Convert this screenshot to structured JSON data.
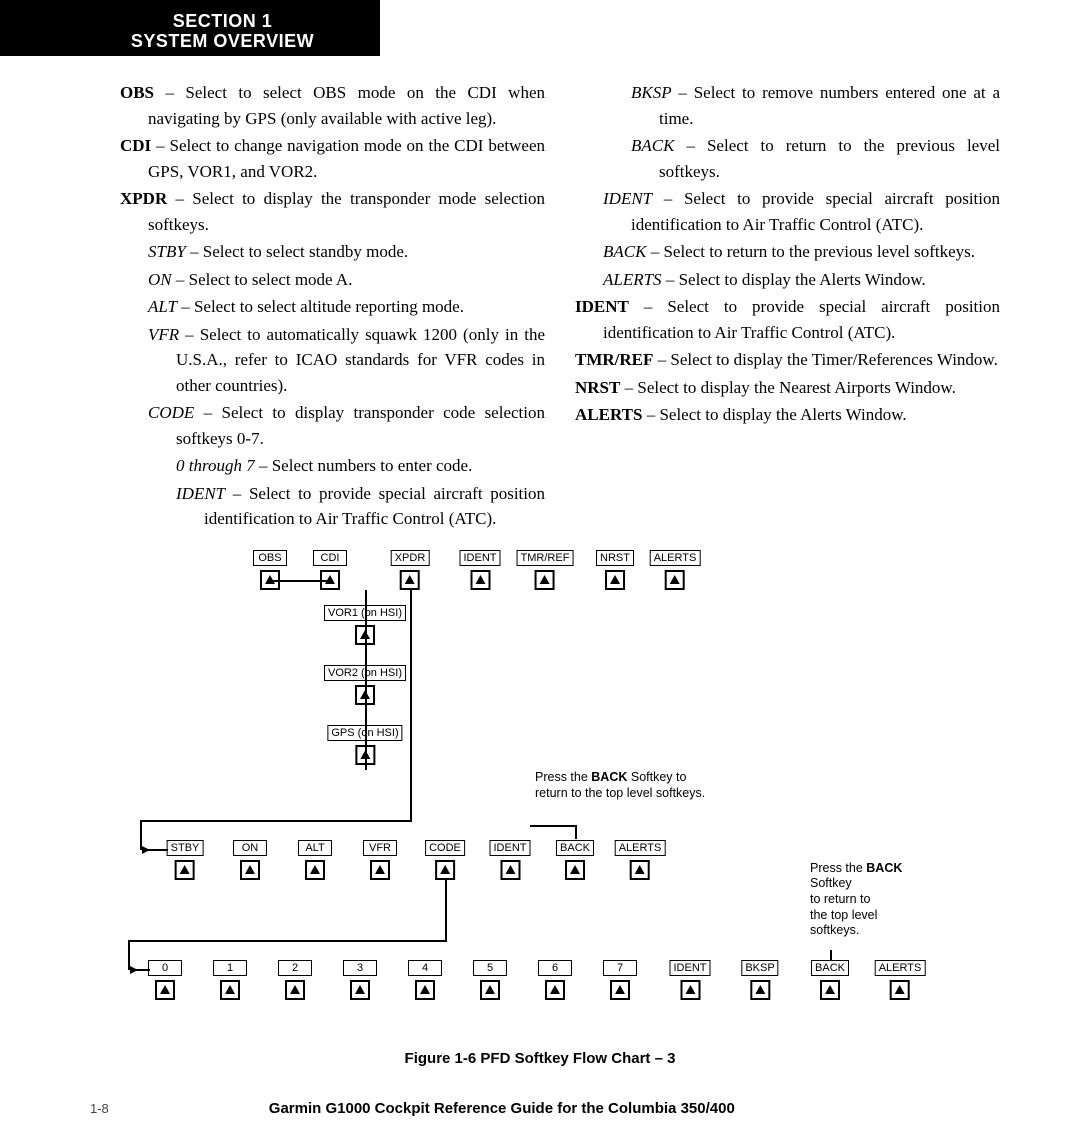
{
  "header": {
    "line1": "SECTION 1",
    "line2": "SYSTEM OVERVIEW"
  },
  "left_col": [
    {
      "lvl": 1,
      "b": "OBS",
      "t": " – Select to select OBS mode on the CDI when navigating by GPS (only available with active leg)."
    },
    {
      "lvl": 1,
      "b": "CDI",
      "t": " – Select to change navigation mode on the CDI between GPS, VOR1, and VOR2."
    },
    {
      "lvl": 1,
      "b": "XPDR",
      "t": " – Select to display the transponder mode selection softkeys."
    },
    {
      "lvl": 2,
      "i": "STBY",
      "t": " – Select to select standby mode."
    },
    {
      "lvl": 2,
      "i": "ON",
      "t": " – Select to select mode A."
    },
    {
      "lvl": 2,
      "i": "ALT",
      "t": " – Select to select altitude reporting mode."
    },
    {
      "lvl": 2,
      "i": "VFR",
      "t": " – Select to automatically squawk 1200 (only in the U.S.A., refer to ICAO standards for VFR codes in other countries)."
    },
    {
      "lvl": 2,
      "i": "CODE",
      "t": " – Select to display transponder code selection softkeys 0-7."
    },
    {
      "lvl": 3,
      "i": "0 through 7",
      "t": " – Select numbers to enter code."
    },
    {
      "lvl": 3,
      "i": "IDENT",
      "t": " – Select to provide special aircraft position identification to Air Traffic Control (ATC)."
    }
  ],
  "right_col": [
    {
      "lvl": 3,
      "i": "BKSP",
      "t": " – Select to remove numbers entered one at a time."
    },
    {
      "lvl": 3,
      "i": "BACK",
      "t": " – Select to return to the previous level softkeys."
    },
    {
      "lvl": 2,
      "i": "IDENT",
      "t": " – Select to provide special aircraft position identification to Air Traffic Control (ATC)."
    },
    {
      "lvl": 2,
      "i": "BACK",
      "t": " – Select to return to the previous level softkeys."
    },
    {
      "lvl": 2,
      "i": "ALERTS",
      "t": " – Select to display the Alerts Window."
    },
    {
      "lvl": 1,
      "b": "IDENT",
      "t": " – Select to provide special aircraft position identification to Air Traffic Control (ATC)."
    },
    {
      "lvl": 1,
      "b": "TMR/REF",
      "t": " – Select to display the Timer/References Window."
    },
    {
      "lvl": 1,
      "b": "NRST",
      "t": " – Select to display the Nearest Airports Window."
    },
    {
      "lvl": 1,
      "b": "ALERTS",
      "t": " – Select to display the Alerts Window."
    }
  ],
  "diagram": {
    "row1": [
      "OBS",
      "CDI",
      "XPDR",
      "IDENT",
      "TMR/REF",
      "NRST",
      "ALERTS"
    ],
    "row1_x": [
      150,
      210,
      290,
      360,
      425,
      495,
      555
    ],
    "cdi_sub": [
      "VOR1 (on HSI)",
      "VOR2 (on HSI)",
      "GPS (on HSI)"
    ],
    "cdi_sub_y": [
      55,
      115,
      175
    ],
    "row2": [
      "STBY",
      "ON",
      "ALT",
      "VFR",
      "CODE",
      "IDENT",
      "BACK",
      "ALERTS"
    ],
    "row2_x": [
      65,
      130,
      195,
      260,
      325,
      390,
      455,
      520
    ],
    "row3": [
      "0",
      "1",
      "2",
      "3",
      "4",
      "5",
      "6",
      "7",
      "IDENT",
      "BKSP",
      "BACK",
      "ALERTS"
    ],
    "row3_x": [
      45,
      110,
      175,
      240,
      305,
      370,
      435,
      500,
      570,
      640,
      710,
      780
    ],
    "note1": {
      "pre": "Press the ",
      "b": "BACK",
      "post": " Softkey to return to the top level softkeys."
    },
    "note2": {
      "pre": "Press the ",
      "b": "BACK",
      "post": "\nSoftkey\nto return to\nthe top level\nsoftkeys."
    }
  },
  "figure_caption": "Figure 1-6  PFD Softkey Flow Chart – 3",
  "footer": {
    "page": "1-8",
    "title": "Garmin G1000 Cockpit Reference Guide for the Columbia 350/400"
  }
}
